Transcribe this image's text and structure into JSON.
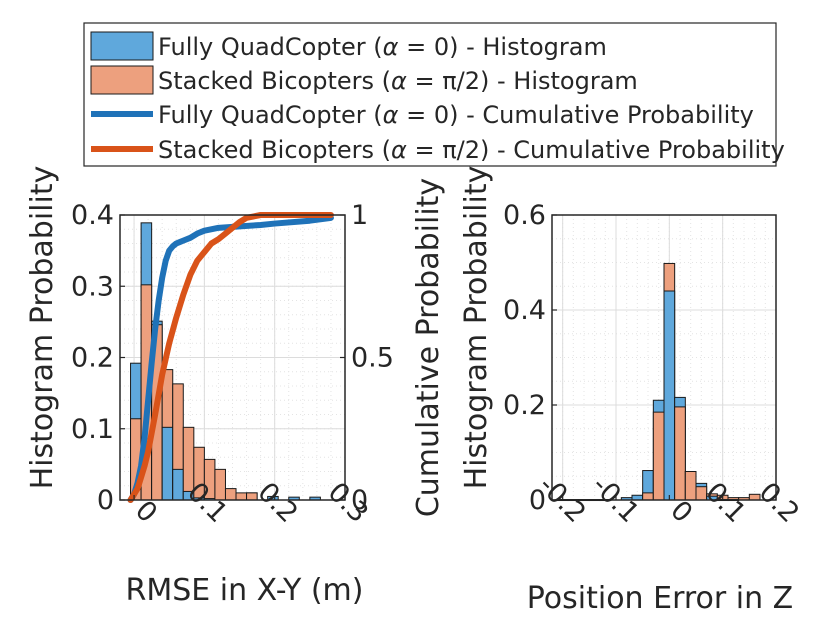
{
  "colors": {
    "quad_hist": "#5fa8dc",
    "bi_hist": "#eda07e",
    "quad_line": "#1f72b8",
    "bi_line": "#d95319",
    "axis": "#262626",
    "grid": "#dcdcdc"
  },
  "legend": {
    "entries": [
      {
        "label_pre": "Fully QuadCopter (",
        "symbol": "α",
        "label_post": " = 0) - Histogram",
        "color_key": "quad_hist",
        "kind": "patch"
      },
      {
        "label_pre": "Stacked Bicopters (",
        "symbol": "α",
        "label_post": " = π/2) - Histogram",
        "color_key": "bi_hist",
        "kind": "patch"
      },
      {
        "label_pre": "Fully QuadCopter (",
        "symbol": "α",
        "label_post": " = 0) - Cumulative Probability",
        "color_key": "quad_line",
        "kind": "line"
      },
      {
        "label_pre": "Stacked Bicopters (",
        "symbol": "α",
        "label_post": " = π/2) - Cumulative Probability",
        "color_key": "bi_line",
        "kind": "line"
      }
    ]
  },
  "chart_data": [
    {
      "type": "bar",
      "subtype": "histogram+cdf",
      "xlabel": "RMSE in X-Y (m)",
      "ylabel_left": "Histogram Probability",
      "ylabel_right": "Cumulative Probability",
      "xlim": [
        -0.02,
        0.3
      ],
      "ylim_left": [
        0,
        0.4
      ],
      "ylim_right": [
        0,
        1
      ],
      "xticks": [
        0,
        0.1,
        0.2,
        0.3
      ],
      "xtick_labels": [
        "0",
        "0.1",
        "0.2",
        "0.3"
      ],
      "yticks_left": [
        0,
        0.1,
        0.2,
        0.3,
        0.4
      ],
      "ytick_labels_left": [
        "0",
        "0.1",
        "0.2",
        "0.3",
        "0.4"
      ],
      "yticks_right": [
        0,
        0.5,
        1
      ],
      "ytick_labels_right": [
        "0",
        "0.5",
        "1"
      ],
      "bin_edges": [
        -0.005,
        0.01,
        0.025,
        0.04,
        0.055,
        0.07,
        0.085,
        0.1,
        0.115,
        0.13,
        0.145,
        0.16,
        0.175,
        0.19,
        0.205,
        0.22,
        0.235,
        0.25,
        0.265,
        0.28
      ],
      "series": [
        {
          "name": "Fully QuadCopter - Histogram",
          "values": [
            0.192,
            0.389,
            0.251,
            0.102,
            0.043,
            0.012,
            0.003,
            0.002,
            0.0,
            0.0,
            0.0,
            0.01,
            0.0,
            0.005,
            0.0,
            0.004,
            0.0,
            0.004,
            0.0
          ],
          "color_key": "quad_hist"
        },
        {
          "name": "Stacked Bicopters - Histogram",
          "values": [
            0.114,
            0.302,
            0.246,
            0.183,
            0.163,
            0.102,
            0.074,
            0.057,
            0.043,
            0.016,
            0.01,
            0.01,
            0.0,
            0.0,
            0.0,
            0.0,
            0.0,
            0.0,
            0.0
          ],
          "color_key": "bi_hist"
        }
      ],
      "cdf_series": [
        {
          "name": "Fully QuadCopter - Cumulative Probability",
          "color_key": "quad_line",
          "x": [
            -0.005,
            0.0,
            0.005,
            0.01,
            0.015,
            0.02,
            0.025,
            0.03,
            0.035,
            0.04,
            0.045,
            0.05,
            0.055,
            0.06,
            0.065,
            0.07,
            0.08,
            0.09,
            0.1,
            0.12,
            0.15,
            0.18,
            0.2,
            0.25,
            0.28
          ],
          "y": [
            0.0,
            0.02,
            0.06,
            0.12,
            0.22,
            0.35,
            0.48,
            0.6,
            0.7,
            0.78,
            0.84,
            0.875,
            0.89,
            0.9,
            0.905,
            0.91,
            0.92,
            0.935,
            0.945,
            0.955,
            0.96,
            0.965,
            0.97,
            0.98,
            0.99
          ]
        },
        {
          "name": "Stacked Bicopters - Cumulative Probability",
          "color_key": "bi_line",
          "x": [
            -0.005,
            0.0,
            0.005,
            0.01,
            0.015,
            0.02,
            0.03,
            0.04,
            0.05,
            0.06,
            0.07,
            0.08,
            0.09,
            0.1,
            0.11,
            0.12,
            0.13,
            0.14,
            0.15,
            0.16,
            0.18,
            0.2,
            0.25,
            0.28
          ],
          "y": [
            0.0,
            0.02,
            0.04,
            0.08,
            0.12,
            0.17,
            0.3,
            0.44,
            0.55,
            0.64,
            0.72,
            0.79,
            0.84,
            0.87,
            0.9,
            0.915,
            0.935,
            0.955,
            0.975,
            0.99,
            1.0,
            1.0,
            1.0,
            1.0
          ]
        }
      ]
    },
    {
      "type": "bar",
      "subtype": "histogram",
      "xlabel": "Position Error in Z",
      "ylabel": "Histogram Probability",
      "xlim": [
        -0.22,
        0.2
      ],
      "ylim": [
        0,
        0.6
      ],
      "xticks": [
        -0.2,
        -0.1,
        0,
        0.1,
        0.2
      ],
      "xtick_labels": [
        "-0.2",
        "-0.1",
        "0",
        "0.1",
        "0.2"
      ],
      "yticks": [
        0,
        0.2,
        0.4,
        0.6
      ],
      "ytick_labels": [
        "0",
        "0.2",
        "0.4",
        "0.6"
      ],
      "bin_edges": [
        -0.21,
        -0.19,
        -0.17,
        -0.15,
        -0.13,
        -0.11,
        -0.09,
        -0.07,
        -0.05,
        -0.03,
        -0.01,
        0.01,
        0.03,
        0.05,
        0.07,
        0.09,
        0.11,
        0.13,
        0.15,
        0.17,
        0.19
      ],
      "series": [
        {
          "name": "Fully QuadCopter - Histogram",
          "values": [
            0.001,
            0.001,
            0.001,
            0.001,
            0.001,
            0.0,
            0.005,
            0.01,
            0.062,
            0.21,
            0.44,
            0.216,
            0.06,
            0.035,
            0.008,
            0.001,
            0.001,
            0.0,
            0.0,
            0.0
          ],
          "color_key": "quad_hist"
        },
        {
          "name": "Stacked Bicopters - Histogram",
          "values": [
            0.0,
            0.0,
            0.0,
            0.0,
            0.0,
            0.0,
            0.0,
            0.0,
            0.015,
            0.185,
            0.498,
            0.196,
            0.06,
            0.028,
            0.013,
            0.01,
            0.005,
            0.005,
            0.012,
            0.0
          ],
          "color_key": "bi_hist"
        }
      ]
    }
  ]
}
